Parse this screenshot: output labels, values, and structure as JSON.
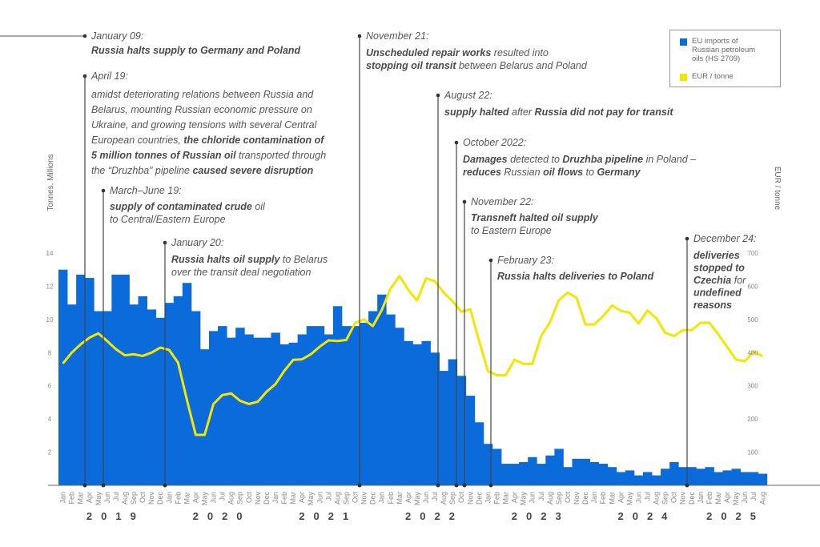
{
  "chart_data": {
    "type": "bar+line",
    "title": "",
    "ylabel_left": "Tonnes, Millions",
    "ylabel_right": "EUR / tonne",
    "ylim_left": [
      0,
      14
    ],
    "ylim_right": [
      0,
      700
    ],
    "yticks_left": [
      2,
      4,
      6,
      8,
      10,
      12,
      14
    ],
    "yticks_right": [
      100,
      200,
      300,
      400,
      500,
      600,
      700
    ],
    "grid": false,
    "legend_position": "top-right",
    "months": [
      "Jan",
      "Feb",
      "Mar",
      "Apr",
      "May",
      "Jun",
      "Jul",
      "Aug",
      "Sep",
      "Oct",
      "Nov",
      "Dec"
    ],
    "years": [
      {
        "label": "2019",
        "start": 0,
        "count": 12
      },
      {
        "label": "2020",
        "start": 12,
        "count": 12
      },
      {
        "label": "2021",
        "start": 24,
        "count": 12
      },
      {
        "label": "2022",
        "start": 36,
        "count": 12
      },
      {
        "label": "2023",
        "start": 48,
        "count": 12
      },
      {
        "label": "2024",
        "start": 60,
        "count": 12
      },
      {
        "label": "2025",
        "start": 72,
        "count": 8
      }
    ],
    "series": [
      {
        "name": "EU imports of Russian petroleum oils (HS 2709)",
        "type": "bar",
        "axis": "left",
        "color": "#0b6bdb",
        "values": [
          13.0,
          10.9,
          12.7,
          12.5,
          10.5,
          10.5,
          12.7,
          12.7,
          10.9,
          11.4,
          10.6,
          10.1,
          11.0,
          11.4,
          12.2,
          10.5,
          8.2,
          9.3,
          9.6,
          8.9,
          9.5,
          9.1,
          8.9,
          8.9,
          9.2,
          8.5,
          8.6,
          9.1,
          9.6,
          9.6,
          9.1,
          10.8,
          9.6,
          9.6,
          9.8,
          10.5,
          11.5,
          10.3,
          9.5,
          8.7,
          8.5,
          8.7,
          8.0,
          6.9,
          7.6,
          6.6,
          5.4,
          3.8,
          2.5,
          2.2,
          1.3,
          1.3,
          1.4,
          1.7,
          1.3,
          1.8,
          2.2,
          1.1,
          1.6,
          1.6,
          1.4,
          1.3,
          1.1,
          0.8,
          0.9,
          0.6,
          0.8,
          0.6,
          1.0,
          1.4,
          1.1,
          1.1,
          1.0,
          1.1,
          0.8,
          0.9,
          1.0,
          0.8,
          0.8,
          0.7
        ]
      },
      {
        "name": "EUR / tonne",
        "type": "line",
        "axis": "right",
        "color": "#f5e600",
        "values": [
          367,
          400,
          425,
          445,
          458,
          435,
          410,
          392,
          395,
          390,
          400,
          415,
          408,
          370,
          258,
          152,
          152,
          245,
          272,
          277,
          255,
          245,
          252,
          282,
          305,
          345,
          378,
          380,
          395,
          418,
          437,
          435,
          438,
          490,
          500,
          480,
          528,
          593,
          631,
          589,
          557,
          624,
          615,
          581,
          555,
          523,
          531,
          435,
          344,
          332,
          332,
          379,
          366,
          366,
          450,
          492,
          558,
          581,
          565,
          485,
          485,
          510,
          542,
          526,
          520,
          488,
          527,
          504,
          460,
          450,
          468,
          468,
          490,
          490,
          455,
          417,
          379,
          374,
          403,
          389
        ]
      }
    ]
  },
  "annotations": [
    {
      "date": "January 09:",
      "month_index": null,
      "lines": [
        [
          {
            "t": "Russia halts supply to Germany and Poland",
            "b": true
          }
        ]
      ]
    },
    {
      "date": "April 19:",
      "month_index": 3,
      "lines": [
        [
          {
            "t": "amidst deteriorating relations between Russia and",
            "b": false
          }
        ],
        [
          {
            "t": "Belarus, mounting Russian economic pressure on",
            "b": false
          }
        ],
        [
          {
            "t": "Ukraine, and growing tensions with several Central",
            "b": false
          }
        ],
        [
          {
            "t": "European countries, ",
            "b": false
          },
          {
            "t": "the chloride contamination of",
            "b": true
          }
        ],
        [
          {
            "t": "5 million tonnes of Russian oil",
            "b": true
          },
          {
            "t": " transported through",
            "b": false
          }
        ],
        [
          {
            "t": "the “Druzhba” pipeline ",
            "b": false
          },
          {
            "t": "caused severe disruption",
            "b": true
          }
        ]
      ]
    },
    {
      "date": "March–June 19:",
      "month_index": 5,
      "lines": [
        [
          {
            "t": "supply of contaminated crude",
            "b": true
          },
          {
            "t": " oil",
            "b": false
          }
        ],
        [
          {
            "t": "to Central/Eastern Europe",
            "b": false
          }
        ]
      ]
    },
    {
      "date": "January 20:",
      "month_index": 12,
      "lines": [
        [
          {
            "t": "Russia halts oil supply",
            "b": true
          },
          {
            "t": " to Belarus",
            "b": false
          }
        ],
        [
          {
            "t": "over the transit deal negotiation",
            "b": false
          }
        ]
      ]
    },
    {
      "date": "November 21:",
      "month_index": 34,
      "lines": [
        [
          {
            "t": "Unscheduled repair works",
            "b": true
          },
          {
            "t": " resulted into",
            "b": false
          }
        ],
        [
          {
            "t": "stopping oil transit",
            "b": true
          },
          {
            "t": " between Belarus and Poland",
            "b": false
          }
        ]
      ]
    },
    {
      "date": "August 22:",
      "month_index": 43,
      "lines": [
        [
          {
            "t": "supply halted",
            "b": true
          },
          {
            "t": " after ",
            "b": false
          },
          {
            "t": "Russia did not pay for transit",
            "b": true
          }
        ]
      ]
    },
    {
      "date": "October 2022:",
      "month_index": 45,
      "lines": [
        [
          {
            "t": "Damages",
            "b": true
          },
          {
            "t": " detected to ",
            "b": false
          },
          {
            "t": "Druzhba pipeline",
            "b": true
          },
          {
            "t": " in Poland –",
            "b": false
          }
        ],
        [
          {
            "t": "reduces",
            "b": true
          },
          {
            "t": " Russian ",
            "b": false
          },
          {
            "t": "oil flows",
            "b": true
          },
          {
            "t": " to ",
            "b": false
          },
          {
            "t": "Germany",
            "b": true
          }
        ]
      ]
    },
    {
      "date": "November 22:",
      "month_index": 46,
      "lines": [
        [
          {
            "t": "Transneft halted oil supply",
            "b": true
          }
        ],
        [
          {
            "t": "to Eastern Europe",
            "b": false
          }
        ]
      ]
    },
    {
      "date": "February 23:",
      "month_index": 49,
      "lines": [
        [
          {
            "t": "Russia halts deliveries to Poland",
            "b": true
          }
        ]
      ]
    },
    {
      "date": "December 24:",
      "month_index": 71,
      "lines": [
        [
          {
            "t": "deliveries",
            "b": true
          }
        ],
        [
          {
            "t": "stopped to",
            "b": true
          }
        ],
        [
          {
            "t": "Czechia",
            "b": true
          },
          {
            "t": " for",
            "b": false
          }
        ],
        [
          {
            "t": "undefined",
            "b": true
          }
        ],
        [
          {
            "t": "reasons",
            "b": true
          }
        ]
      ]
    }
  ],
  "legend": {
    "bar_label_lines": [
      "EU imports of",
      "Russian petroleum",
      "oils (HS 2709)"
    ],
    "line_label": "EUR / tonne"
  }
}
